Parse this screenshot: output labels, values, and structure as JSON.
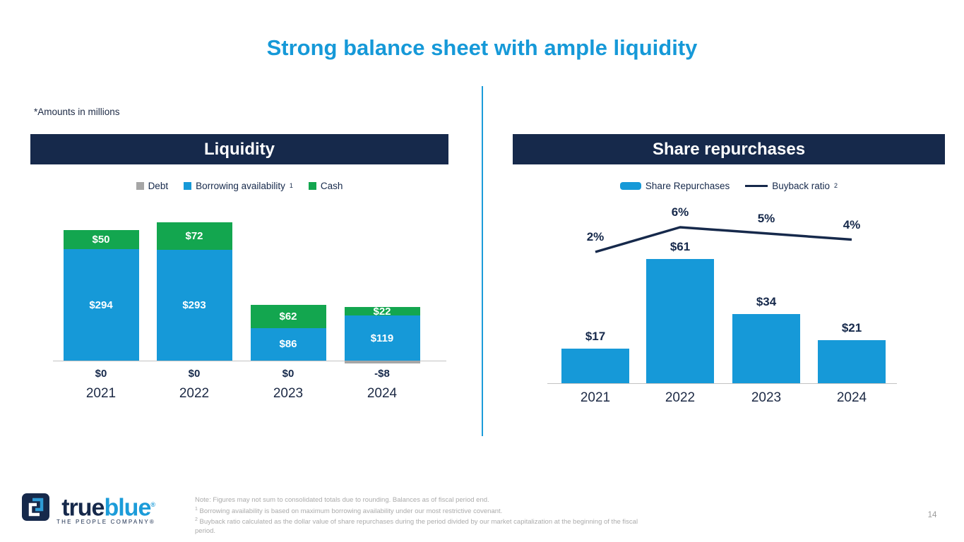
{
  "slide": {
    "title": "Strong balance sheet with ample liquidity",
    "amounts_note": "*Amounts in millions",
    "page_number": "14"
  },
  "colors": {
    "accent_blue": "#1699D8",
    "navy": "#16294B",
    "green": "#13A64F",
    "debt_gray": "#A6A6A6",
    "axis_gray": "#C3C3C3",
    "divider_blue": "#1C9CD9"
  },
  "brand": {
    "word_part1": "true",
    "word_part2": "blue",
    "reg_mark": "®",
    "tagline": "THE PEOPLE COMPANY®"
  },
  "footnotes": {
    "line1": "Note: Figures may not sum to consolidated totals due to rounding. Balances as of fiscal period end.",
    "line2_sup": "1",
    "line2": " Borrowing availability is based on maximum borrowing availability under our most restrictive covenant.",
    "line3_sup": "2",
    "line3": " Buyback ratio calculated as the dollar value of share repurchases during the period divided by our market capitalization at the beginning of the fiscal period."
  },
  "chart_data": [
    {
      "type": "bar",
      "stacked": true,
      "title": "Liquidity",
      "categories": [
        "2021",
        "2022",
        "2023",
        "2024"
      ],
      "series": [
        {
          "name": "Debt",
          "legend_sup": "",
          "color": "#A6A6A6",
          "values": [
            0,
            0,
            0,
            -8
          ],
          "labels": [
            "$0",
            "$0",
            "$0",
            "-$8"
          ]
        },
        {
          "name": "Borrowing availability",
          "legend_sup": "1",
          "color": "#1699D8",
          "values": [
            294,
            293,
            86,
            119
          ],
          "labels": [
            "$294",
            "$293",
            "$86",
            "$119"
          ]
        },
        {
          "name": "Cash",
          "legend_sup": "",
          "color": "#13A64F",
          "values": [
            50,
            72,
            62,
            22
          ],
          "labels": [
            "$50",
            "$72",
            "$62",
            "$22"
          ]
        }
      ],
      "ylabel": "",
      "xlabel": "",
      "ylim": [
        -10,
        370
      ],
      "grid": false,
      "legend_position": "top"
    },
    {
      "type": "bar+line",
      "title": "Share repurchases",
      "categories": [
        "2021",
        "2022",
        "2023",
        "2024"
      ],
      "series": [
        {
          "name": "Share Repurchases",
          "legend_sup": "",
          "kind": "bar",
          "color": "#1699D8",
          "values": [
            17,
            61,
            34,
            21
          ],
          "labels": [
            "$17",
            "$61",
            "$34",
            "$21"
          ]
        },
        {
          "name": "Buyback ratio",
          "legend_sup": "2",
          "kind": "line",
          "color": "#16294B",
          "values": [
            2,
            6,
            5,
            4
          ],
          "labels": [
            "2%",
            "6%",
            "5%",
            "4%"
          ]
        }
      ],
      "ylabel": "",
      "xlabel": "",
      "ylim": [
        0,
        70
      ],
      "grid": false,
      "legend_position": "top"
    }
  ]
}
